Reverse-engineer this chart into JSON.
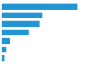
{
  "values": [
    3800,
    2050,
    1900,
    1350,
    420,
    240,
    150
  ],
  "bar_color": "#2196d3",
  "background_color": "#ffffff",
  "xlim": [
    0,
    4300
  ],
  "bar_height": 0.7,
  "figsize": [
    1.0,
    0.71
  ],
  "dpi": 100
}
